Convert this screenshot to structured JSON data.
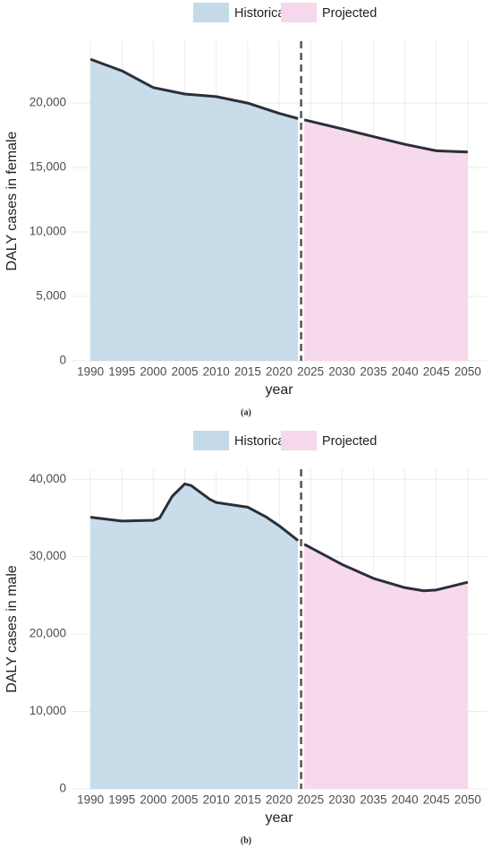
{
  "chart_data": [
    {
      "type": "area",
      "caption": "(a)",
      "x_label": "year",
      "y_label": "DALY cases in female",
      "series": [
        {
          "name": "Historical",
          "color": "#c5dae8",
          "x": [
            1990,
            1995,
            2000,
            2005,
            2010,
            2015,
            2020,
            2023
          ],
          "values": [
            23400,
            22500,
            21200,
            20700,
            20500,
            20000,
            19200,
            18800
          ]
        },
        {
          "name": "Projected",
          "color": "#f5d8eb",
          "x": [
            2024,
            2030,
            2035,
            2040,
            2045,
            2050
          ],
          "values": [
            18700,
            18000,
            17400,
            16800,
            16300,
            16200
          ]
        }
      ],
      "line_color": "#2b2f3a",
      "vline": 2023.5,
      "xlim": [
        1987,
        2053
      ],
      "xticks": [
        1990,
        1995,
        2000,
        2005,
        2010,
        2015,
        2020,
        2025,
        2030,
        2035,
        2040,
        2045,
        2050
      ],
      "ylim": [
        0,
        24800
      ],
      "yticks": [
        0,
        {
          "value": 5000,
          "label": "5,000"
        },
        {
          "value": 10000,
          "label": "10,000"
        },
        {
          "value": 15000,
          "label": "15,000"
        },
        {
          "value": 20000,
          "label": "20,000"
        }
      ],
      "grid": true
    },
    {
      "type": "area",
      "caption": "(b)",
      "x_label": "year",
      "y_label": "DALY cases in male",
      "series": [
        {
          "name": "Historical",
          "color": "#c5dae8",
          "x": [
            1990,
            1995,
            2000,
            2001,
            2003,
            2005,
            2006,
            2009,
            2010,
            2015,
            2018,
            2020,
            2023
          ],
          "values": [
            35100,
            34600,
            34700,
            35000,
            37800,
            39400,
            39200,
            37400,
            37000,
            36400,
            35100,
            34000,
            32100
          ]
        },
        {
          "name": "Projected",
          "color": "#f5d8eb",
          "x": [
            2024,
            2030,
            2035,
            2040,
            2043,
            2045,
            2050
          ],
          "values": [
            31600,
            29000,
            27200,
            26000,
            25600,
            25700,
            26700
          ]
        }
      ],
      "line_color": "#2b2f3a",
      "vline": 2023.5,
      "xlim": [
        1987,
        2053
      ],
      "xticks": [
        1990,
        1995,
        2000,
        2005,
        2010,
        2015,
        2020,
        2025,
        2030,
        2035,
        2040,
        2045,
        2050
      ],
      "ylim": [
        0,
        41300
      ],
      "yticks": [
        0,
        {
          "value": 10000,
          "label": "10,000"
        },
        {
          "value": 20000,
          "label": "20,000"
        },
        {
          "value": 30000,
          "label": "30,000"
        },
        {
          "value": 40000,
          "label": "40,000"
        }
      ],
      "grid": true
    }
  ]
}
